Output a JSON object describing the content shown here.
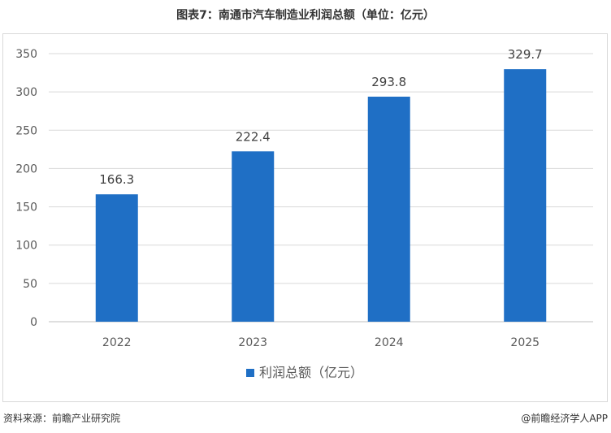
{
  "title": "图表7：南通市汽车制造业利润总额（单位：亿元）",
  "source": "资料来源：前瞻产业研究院",
  "credit": "@前瞻经济学人APP",
  "chart_data": {
    "type": "bar",
    "categories": [
      "2022",
      "2023",
      "2024",
      "2025"
    ],
    "series": [
      {
        "name": "利润总额（亿元）",
        "values": [
          166.3,
          222.4,
          293.8,
          329.7
        ],
        "labels": [
          "166.3",
          "222.4",
          "293.8",
          "329.7"
        ]
      }
    ],
    "ylim": [
      0,
      350
    ],
    "yticks": [
      0,
      50,
      100,
      150,
      200,
      250,
      300,
      350
    ],
    "grid": true,
    "legend": "bottom-center",
    "bar_color": "#1f6fc5",
    "grid_color": "#d9d9d9"
  }
}
